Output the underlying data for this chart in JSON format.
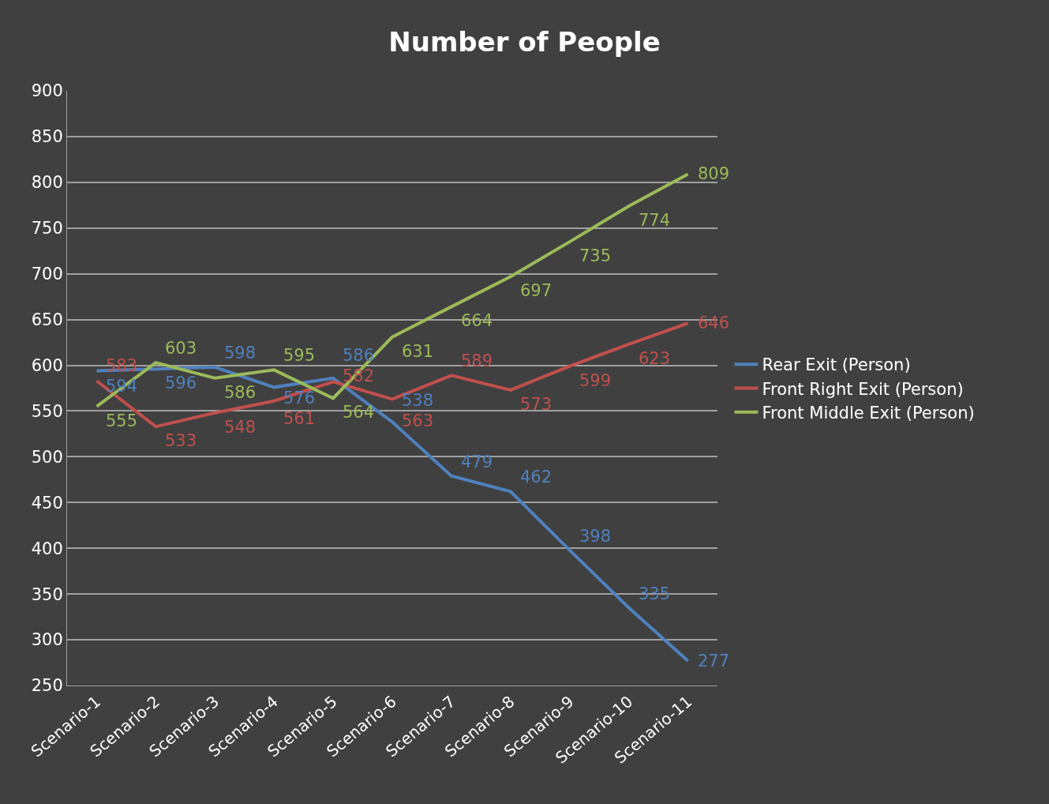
{
  "chart_data": {
    "type": "line",
    "title": "Number of People",
    "categories": [
      "Scenario-1",
      "Scenario-2",
      "Scenario-3",
      "Scenario-4",
      "Scenario-5",
      "Scenario-6",
      "Scenario-7",
      "Scenario-8",
      "Scenario-9",
      "Scenario-10",
      "Scenario-11"
    ],
    "series": [
      {
        "name": "Rear Exit (Person)",
        "color": "#4f81bd",
        "values": [
          594,
          596,
          598,
          576,
          586,
          538,
          479,
          462,
          398,
          335,
          277
        ]
      },
      {
        "name": "Front Right Exit (Person)",
        "color": "#c0504d",
        "values": [
          583,
          533,
          548,
          561,
          582,
          563,
          589,
          573,
          599,
          623,
          646
        ]
      },
      {
        "name": "Front Middle Exit (Person)",
        "color": "#9bbb59",
        "values": [
          555,
          603,
          586,
          595,
          564,
          631,
          664,
          697,
          735,
          774,
          809
        ]
      }
    ],
    "ylim": [
      250,
      900
    ],
    "yticks": [
      250,
      300,
      350,
      400,
      450,
      500,
      550,
      600,
      650,
      700,
      750,
      800,
      850,
      900
    ],
    "grid": "y",
    "legend": "right",
    "data_labels": true,
    "marker": "none",
    "line_style": "solid"
  }
}
